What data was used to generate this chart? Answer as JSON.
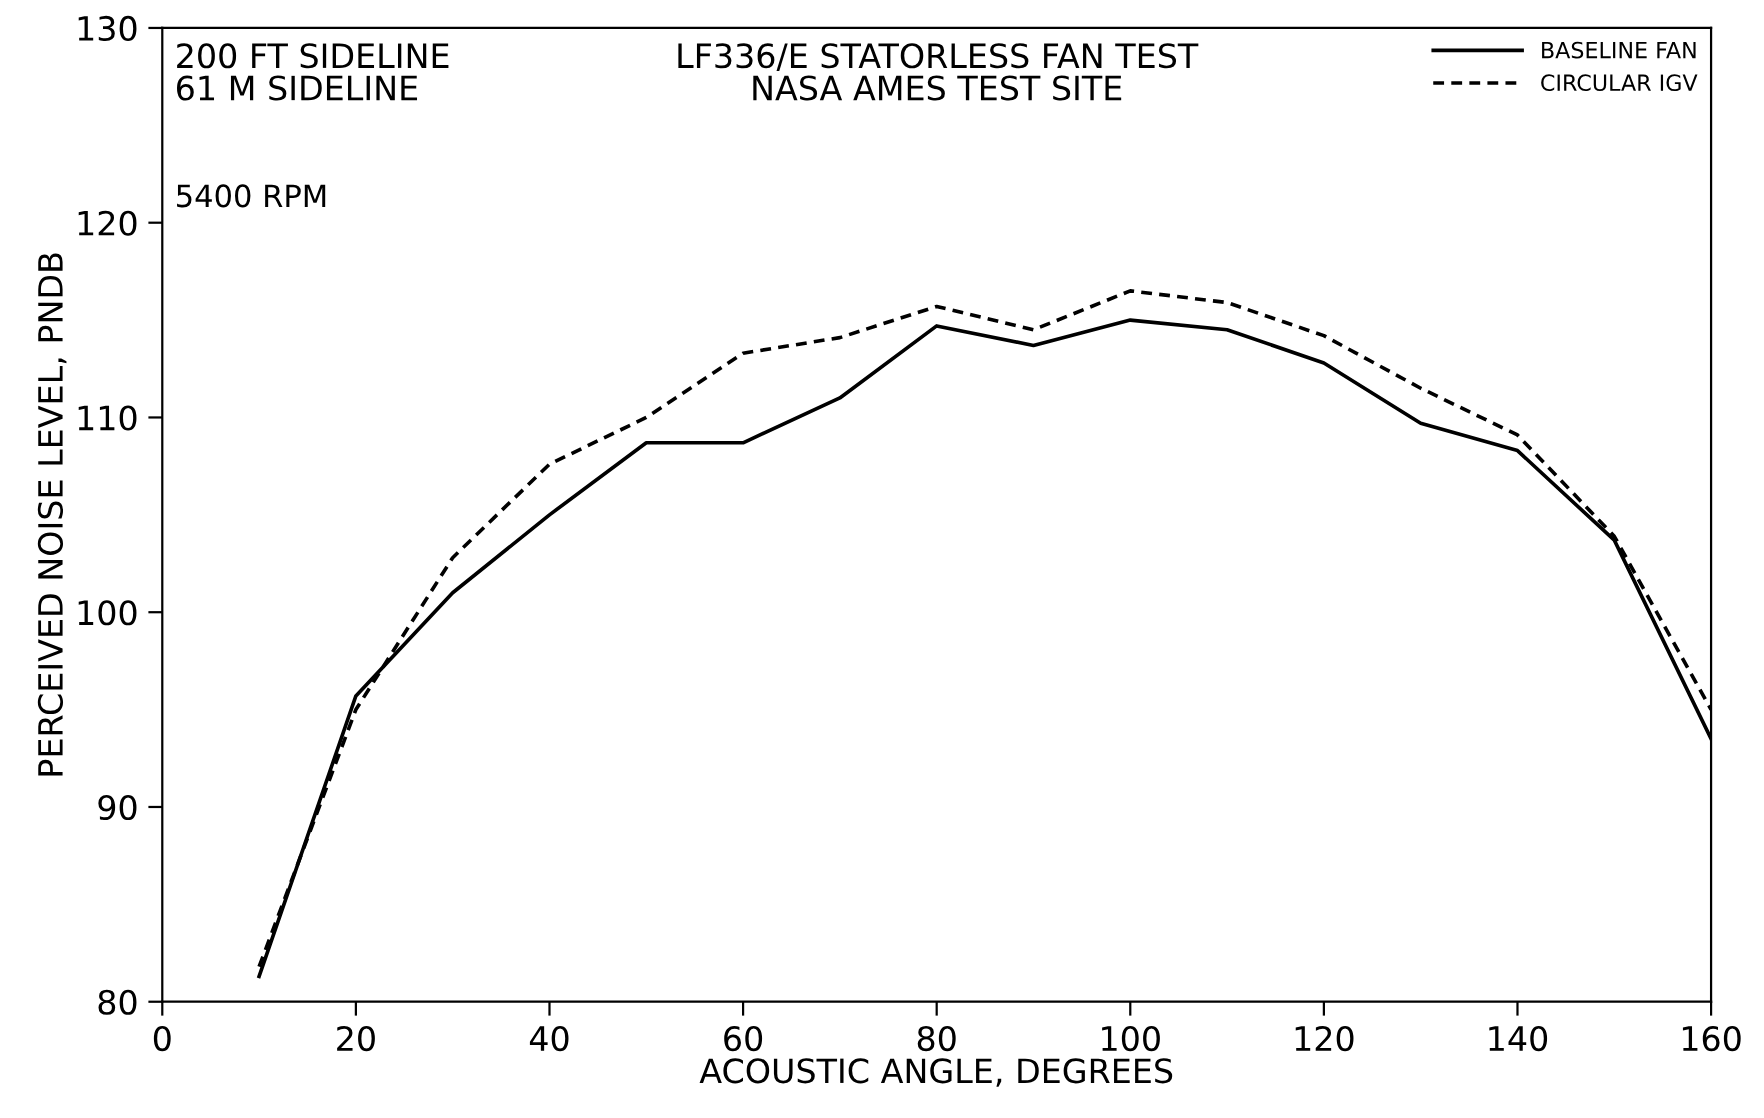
{
  "chart_data": {
    "type": "line",
    "title": "LF336/E STATORLESS FAN TEST\nNASA AMES TEST SITE",
    "xlabel": "ACOUSTIC ANGLE, DEGREES",
    "ylabel": "PERCEIVED NOISE LEVEL, PNDB",
    "annotations": [
      "200 FT SIDELINE\n61 M SIDELINE",
      "5400 RPM"
    ],
    "x": [
      10,
      20,
      30,
      40,
      50,
      60,
      70,
      80,
      90,
      100,
      110,
      120,
      130,
      140,
      150,
      160
    ],
    "series": [
      {
        "name": "BASELINE FAN",
        "color": "#000000",
        "line_style": "solid",
        "values": [
          81.3,
          95.7,
          101,
          105,
          108.7,
          108.7,
          111,
          114.7,
          113.7,
          115,
          114.5,
          112.8,
          109.7,
          108.3,
          103.7,
          93.5
        ]
      },
      {
        "name": "CIRCULAR IGV",
        "color": "#000000",
        "line_style": "dashed",
        "values": [
          81.8,
          95,
          102.8,
          107.6,
          110,
          113.3,
          114.1,
          115.7,
          114.5,
          116.5,
          115.9,
          114.2,
          111.5,
          109.1,
          103.9,
          95
        ]
      }
    ],
    "xlim": [
      0,
      160
    ],
    "xticks": [
      0,
      20,
      40,
      60,
      80,
      100,
      120,
      140,
      160
    ],
    "ylim": [
      80,
      130
    ],
    "yticks": [
      80,
      90,
      100,
      110,
      120,
      130
    ],
    "grid": false,
    "legend": "top right",
    "marker": "none"
  }
}
